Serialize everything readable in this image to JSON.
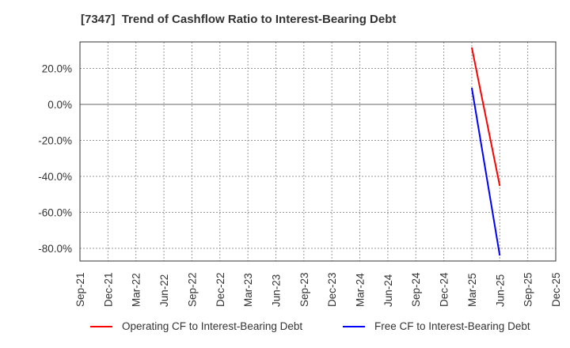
{
  "title": "[7347]  Trend of Cashflow Ratio to Interest-Bearing Debt",
  "chart_data": {
    "type": "line",
    "title": "[7347]  Trend of Cashflow Ratio to Interest-Bearing Debt",
    "xlabel": "",
    "ylabel": "",
    "x_tick_labels": [
      "Sep-21",
      "Dec-21",
      "Mar-22",
      "Jun-22",
      "Sep-22",
      "Dec-22",
      "Mar-23",
      "Jun-23",
      "Sep-23",
      "Dec-23",
      "Mar-24",
      "Jun-24",
      "Sep-24",
      "Dec-24",
      "Mar-25",
      "Jun-25",
      "Sep-25",
      "Dec-25"
    ],
    "y_tick_labels": [
      "20.0%",
      "0.0%",
      "-20.0%",
      "-40.0%",
      "-60.0%",
      "-80.0%"
    ],
    "y_ticks": [
      20,
      0,
      -20,
      -40,
      -60,
      -80
    ],
    "ylim": [
      -87,
      35
    ],
    "grid": true,
    "legend_position": "bottom",
    "x": [
      "Mar-25",
      "Jun-25"
    ],
    "series": [
      {
        "name": "Operating CF to Interest-Bearing Debt",
        "color": "#ff0000",
        "values": [
          31.6,
          -45.3
        ]
      },
      {
        "name": "Free CF to Interest-Bearing Debt",
        "color": "#0000ff",
        "values": [
          9.2,
          -84.0
        ]
      }
    ]
  },
  "legend": {
    "items": [
      {
        "label": "Operating CF to Interest-Bearing Debt",
        "color": "#ff0000"
      },
      {
        "label": "Free CF to Interest-Bearing Debt",
        "color": "#0000ff"
      }
    ]
  }
}
